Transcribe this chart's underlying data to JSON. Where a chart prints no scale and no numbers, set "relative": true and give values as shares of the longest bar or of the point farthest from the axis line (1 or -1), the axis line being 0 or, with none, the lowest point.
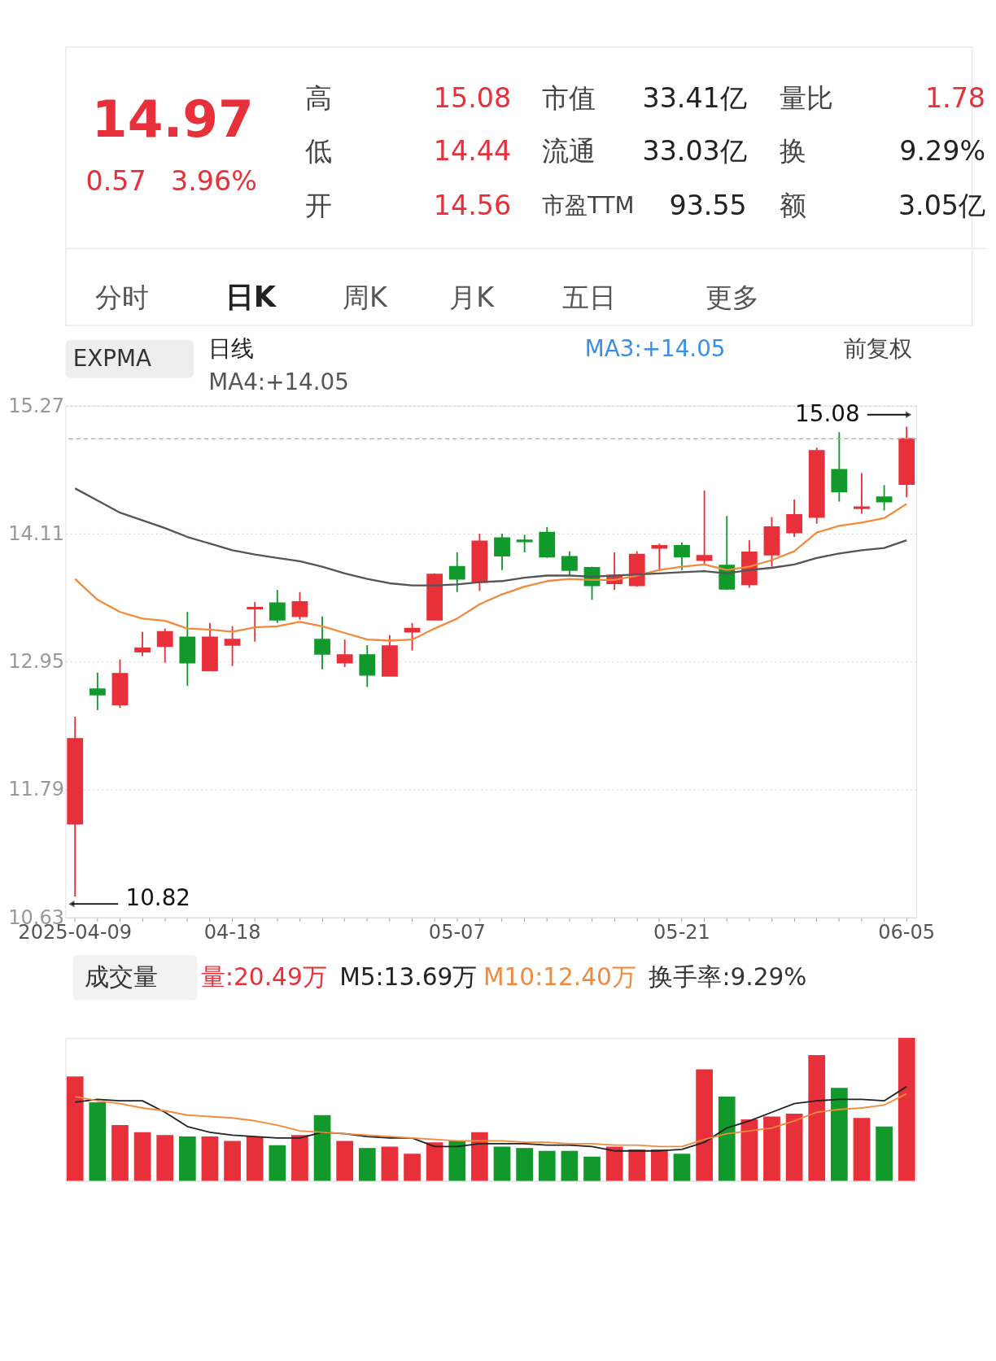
{
  "chart_data": [
    {
      "type": "other",
      "annotations": [
        "14.97",
        "0.57",
        "3.96%",
        "高",
        "15.08",
        "低",
        "14.44",
        "开",
        "14.56",
        "市值",
        "33.41亿",
        "流通",
        "33.03亿",
        "市盈TTM",
        "93.55",
        "量比",
        "1.78",
        "换",
        "9.29%",
        "额",
        "3.05亿",
        "分时",
        "日K",
        "周K",
        "月K",
        "五日",
        "更多"
      ]
    },
    {
      "type": "candlestick",
      "categories": [
        "2025-04-09",
        null,
        null,
        null,
        null,
        null,
        null,
        "04-18",
        null,
        null,
        null,
        null,
        null,
        null,
        null,
        null,
        null,
        "05-07",
        null,
        null,
        null,
        null,
        null,
        null,
        null,
        null,
        null,
        "05-21",
        null,
        null,
        null,
        null,
        null,
        null,
        null,
        null,
        null,
        "06-05"
      ],
      "ohlc": [
        [
          11.48,
          12.45,
          10.82,
          12.25
        ],
        [
          12.7,
          12.85,
          12.51,
          12.65
        ],
        [
          12.56,
          12.97,
          12.53,
          12.84
        ],
        [
          13.04,
          13.22,
          13.0,
          13.07
        ],
        [
          13.09,
          13.25,
          12.94,
          13.22
        ],
        [
          13.17,
          13.4,
          12.73,
          12.94
        ],
        [
          12.87,
          13.3,
          12.87,
          13.17
        ],
        [
          13.1,
          13.27,
          12.91,
          13.15
        ],
        [
          13.43,
          13.49,
          13.13,
          13.44
        ],
        [
          13.48,
          13.6,
          13.3,
          13.33
        ],
        [
          13.36,
          13.58,
          13.33,
          13.49
        ],
        [
          13.15,
          13.36,
          12.88,
          13.02
        ],
        [
          12.94,
          13.15,
          12.9,
          13.01
        ],
        [
          13.01,
          13.1,
          12.72,
          12.83
        ],
        [
          12.82,
          13.19,
          12.82,
          13.09
        ],
        [
          13.22,
          13.3,
          13.05,
          13.25
        ],
        [
          13.33,
          13.75,
          13.33,
          13.74
        ],
        [
          13.81,
          13.94,
          13.58,
          13.7
        ],
        [
          13.67,
          14.11,
          13.59,
          14.04
        ],
        [
          14.07,
          14.11,
          13.78,
          13.91
        ],
        [
          14.05,
          14.1,
          13.94,
          14.04
        ],
        [
          14.12,
          14.17,
          13.89,
          13.9
        ],
        [
          13.9,
          13.95,
          13.73,
          13.78
        ],
        [
          13.8,
          13.81,
          13.51,
          13.64
        ],
        [
          13.66,
          13.94,
          13.6,
          13.73
        ],
        [
          13.64,
          13.95,
          13.63,
          13.92
        ],
        [
          13.98,
          14.02,
          13.77,
          14.0
        ],
        [
          14.0,
          14.03,
          13.78,
          13.9
        ],
        [
          13.87,
          14.5,
          13.83,
          13.91
        ],
        [
          13.82,
          14.27,
          13.6,
          13.61
        ],
        [
          13.65,
          14.05,
          13.62,
          13.94
        ],
        [
          13.92,
          14.26,
          13.81,
          14.17
        ],
        [
          14.12,
          14.42,
          14.08,
          14.28
        ],
        [
          14.26,
          14.89,
          14.2,
          14.86
        ],
        [
          14.69,
          15.03,
          14.4,
          14.49
        ],
        [
          14.34,
          14.66,
          14.29,
          14.35
        ],
        [
          14.44,
          14.55,
          14.32,
          14.4
        ],
        [
          14.56,
          15.08,
          14.44,
          14.97
        ]
      ],
      "colors": [
        "#e8303a",
        "#119a2b",
        "#e8303a",
        "#e8303a",
        "#e8303a",
        "#119a2b",
        "#e8303a",
        "#e8303a",
        "#e8303a",
        "#119a2b",
        "#e8303a",
        "#119a2b",
        "#e8303a",
        "#119a2b",
        "#e8303a",
        "#e8303a",
        "#e8303a",
        "#119a2b",
        "#e8303a",
        "#119a2b",
        "#119a2b",
        "#119a2b",
        "#119a2b",
        "#119a2b",
        "#e8303a",
        "#e8303a",
        "#e8303a",
        "#119a2b",
        "#e8303a",
        "#119a2b",
        "#e8303a",
        "#e8303a",
        "#e8303a",
        "#e8303a",
        "#119a2b",
        "#e8303a",
        "#119a2b",
        "#e8303a"
      ],
      "series": [
        {
          "type": "line",
          "color": "#f08a3c",
          "values": [
            13.7,
            13.51,
            13.4,
            13.34,
            13.32,
            13.25,
            13.24,
            13.22,
            13.26,
            13.27,
            13.31,
            13.27,
            13.21,
            13.15,
            13.14,
            13.15,
            13.25,
            13.34,
            13.47,
            13.56,
            13.63,
            13.68,
            13.7,
            13.69,
            13.69,
            13.73,
            13.78,
            13.81,
            13.83,
            13.78,
            13.81,
            13.87,
            13.95,
            14.12,
            14.18,
            14.21,
            14.25,
            14.38
          ]
        },
        {
          "type": "line",
          "name": "MA4:+14.05",
          "color": "#555555",
          "values": [
            14.52,
            14.41,
            14.3,
            14.23,
            14.16,
            14.08,
            14.02,
            13.96,
            13.92,
            13.89,
            13.86,
            13.81,
            13.75,
            13.7,
            13.66,
            13.64,
            13.64,
            13.65,
            13.67,
            13.68,
            13.71,
            13.73,
            13.73,
            13.72,
            13.73,
            13.74,
            13.75,
            13.76,
            13.77,
            13.75,
            13.78,
            13.8,
            13.83,
            13.89,
            13.93,
            13.96,
            13.98,
            14.05
          ]
        }
      ],
      "ylim": [
        10.63,
        15.27
      ],
      "yticks": [
        15.27,
        14.11,
        12.95,
        11.79,
        10.63
      ],
      "grid": "y",
      "line_style": "solid",
      "marker": "none",
      "ref_lines": [
        {
          "axis": "y",
          "value": 14.97,
          "color": "#aaaaaa",
          "line_style": "dashed"
        }
      ],
      "annotations": [
        "EXPMA",
        "日线",
        "MA3:+14.05",
        "前复权",
        "15.08",
        "10.82"
      ]
    },
    {
      "type": "bar",
      "relative": true,
      "title": "成交量",
      "categories": [
        null,
        null,
        null,
        null,
        null,
        null,
        null,
        null,
        null,
        null,
        null,
        null,
        null,
        null,
        null,
        null,
        null,
        null,
        null,
        null,
        null,
        null,
        null,
        null,
        null,
        null,
        null,
        null,
        null,
        null,
        null,
        null,
        null,
        null,
        null,
        null,
        null,
        null
      ],
      "annotations": [
        "换手率:9.29%"
      ],
      "series": [
        {
          "type": "bar",
          "name": "量:20.49万",
          "color": "#e8303a",
          "colors": [
            "#e8303a",
            "#119a2b",
            "#e8303a",
            "#e8303a",
            "#e8303a",
            "#119a2b",
            "#e8303a",
            "#e8303a",
            "#e8303a",
            "#119a2b",
            "#e8303a",
            "#119a2b",
            "#e8303a",
            "#119a2b",
            "#e8303a",
            "#e8303a",
            "#e8303a",
            "#119a2b",
            "#e8303a",
            "#119a2b",
            "#119a2b",
            "#119a2b",
            "#119a2b",
            "#119a2b",
            "#e8303a",
            "#e8303a",
            "#e8303a",
            "#119a2b",
            "#e8303a",
            "#119a2b",
            "#e8303a",
            "#e8303a",
            "#e8303a",
            "#e8303a",
            "#119a2b",
            "#e8303a",
            "#119a2b",
            "#e8303a"
          ],
          "values": [
            0.73,
            0.55,
            0.39,
            0.34,
            0.32,
            0.31,
            0.31,
            0.28,
            0.31,
            0.25,
            0.32,
            0.46,
            0.28,
            0.23,
            0.24,
            0.19,
            0.27,
            0.28,
            0.34,
            0.24,
            0.23,
            0.21,
            0.21,
            0.17,
            0.24,
            0.22,
            0.22,
            0.19,
            0.78,
            0.59,
            0.43,
            0.45,
            0.47,
            0.88,
            0.65,
            0.44,
            0.38,
            1
          ]
        },
        {
          "type": "line",
          "name": "M5:13.69万",
          "color": "#222222",
          "values": [
            0.55,
            0.57,
            0.56,
            0.56,
            0.48,
            0.38,
            0.34,
            0.32,
            0.31,
            0.3,
            0.3,
            0.34,
            0.33,
            0.31,
            0.3,
            0.3,
            0.24,
            0.24,
            0.26,
            0.26,
            0.26,
            0.25,
            0.25,
            0.24,
            0.21,
            0.21,
            0.21,
            0.22,
            0.27,
            0.37,
            0.42,
            0.48,
            0.54,
            0.56,
            0.57,
            0.57,
            0.56,
            0.66
          ]
        },
        {
          "type": "line",
          "name": "M10:12.40万",
          "color": "#f08a3c",
          "values": [
            0.59,
            0.56,
            0.54,
            0.51,
            0.49,
            0.46,
            0.45,
            0.44,
            0.42,
            0.39,
            0.35,
            0.34,
            0.33,
            0.32,
            0.31,
            0.3,
            0.29,
            0.28,
            0.28,
            0.28,
            0.27,
            0.27,
            0.26,
            0.26,
            0.25,
            0.25,
            0.24,
            0.24,
            0.29,
            0.33,
            0.35,
            0.37,
            0.42,
            0.48,
            0.5,
            0.51,
            0.53,
            0.61
          ]
        }
      ]
    }
  ]
}
